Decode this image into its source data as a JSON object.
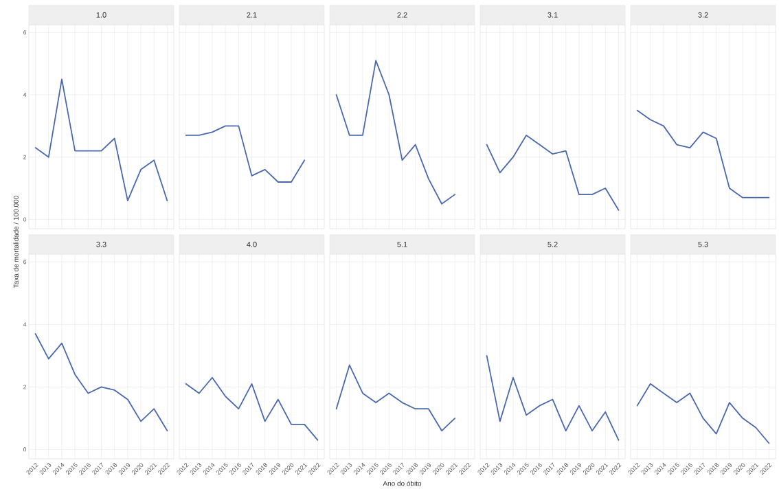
{
  "chart_data": [
    {
      "type": "line",
      "title": "1.0",
      "categories": [
        "2012",
        "2013",
        "2014",
        "2015",
        "2016",
        "2017",
        "2018",
        "2019",
        "2020",
        "2021",
        "2022"
      ],
      "values": [
        2.3,
        2.0,
        4.5,
        2.2,
        2.2,
        2.2,
        2.6,
        0.6,
        1.6,
        1.9,
        0.6
      ],
      "color": "#4a68ad",
      "ylim": [
        -0.3,
        6.25
      ],
      "yticks": [
        0,
        2,
        4,
        6
      ],
      "grid": true,
      "tick_labels": "y"
    },
    {
      "type": "line",
      "title": "2.1",
      "categories": [
        "2012",
        "2013",
        "2014",
        "2015",
        "2016",
        "2017",
        "2018",
        "2019",
        "2020",
        "2021",
        "2022"
      ],
      "values": [
        2.7,
        2.7,
        2.8,
        3.0,
        3.0,
        1.4,
        1.6,
        1.2,
        1.2,
        1.9,
        null
      ],
      "color": "#4a68ad",
      "ylim": [
        -0.3,
        6.25
      ],
      "yticks": [
        0,
        2,
        4,
        6
      ],
      "grid": true,
      "tick_labels": false
    },
    {
      "type": "line",
      "title": "2.2",
      "categories": [
        "2012",
        "2013",
        "2014",
        "2015",
        "2016",
        "2017",
        "2018",
        "2019",
        "2020",
        "2021",
        "2022"
      ],
      "values": [
        4.0,
        2.7,
        2.7,
        5.1,
        4.0,
        1.9,
        2.4,
        1.3,
        0.5,
        0.8,
        null
      ],
      "color": "#4a68ad",
      "ylim": [
        -0.3,
        6.25
      ],
      "yticks": [
        0,
        2,
        4,
        6
      ],
      "grid": true,
      "tick_labels": false
    },
    {
      "type": "line",
      "title": "3.1",
      "categories": [
        "2012",
        "2013",
        "2014",
        "2015",
        "2016",
        "2017",
        "2018",
        "2019",
        "2020",
        "2021",
        "2022"
      ],
      "values": [
        2.4,
        1.5,
        2.0,
        2.7,
        2.4,
        2.1,
        2.2,
        0.8,
        0.8,
        1.0,
        0.3
      ],
      "color": "#4a68ad",
      "ylim": [
        -0.3,
        6.25
      ],
      "yticks": [
        0,
        2,
        4,
        6
      ],
      "grid": true,
      "tick_labels": false
    },
    {
      "type": "line",
      "title": "3.2",
      "categories": [
        "2012",
        "2013",
        "2014",
        "2015",
        "2016",
        "2017",
        "2018",
        "2019",
        "2020",
        "2021",
        "2022"
      ],
      "values": [
        3.5,
        3.2,
        3.0,
        2.4,
        2.3,
        2.8,
        2.6,
        1.0,
        0.7,
        0.7,
        0.7
      ],
      "color": "#4a68ad",
      "ylim": [
        -0.3,
        6.25
      ],
      "yticks": [
        0,
        2,
        4,
        6
      ],
      "grid": true,
      "tick_labels": false
    },
    {
      "type": "line",
      "title": "3.3",
      "ylabel": "Taxa de mortalidade / 100.000",
      "categories": [
        "2012",
        "2013",
        "2014",
        "2015",
        "2016",
        "2017",
        "2018",
        "2019",
        "2020",
        "2021",
        "2022"
      ],
      "values": [
        3.7,
        2.9,
        3.4,
        2.4,
        1.8,
        2.0,
        1.9,
        1.6,
        0.9,
        1.3,
        0.6
      ],
      "color": "#4a68ad",
      "ylim": [
        -0.3,
        6.25
      ],
      "yticks": [
        0,
        2,
        4,
        6
      ],
      "grid": true
    },
    {
      "type": "line",
      "title": "4.0",
      "categories": [
        "2012",
        "2013",
        "2014",
        "2015",
        "2016",
        "2017",
        "2018",
        "2019",
        "2020",
        "2021",
        "2022"
      ],
      "values": [
        2.1,
        1.8,
        2.3,
        1.7,
        1.3,
        2.1,
        0.9,
        1.6,
        0.8,
        0.8,
        0.3
      ],
      "color": "#4a68ad",
      "ylim": [
        -0.3,
        6.25
      ],
      "yticks": [
        0,
        2,
        4,
        6
      ],
      "grid": true,
      "tick_labels": "x"
    },
    {
      "type": "line",
      "title": "5.1",
      "xlabel": "Ano do óbito",
      "categories": [
        "2012",
        "2013",
        "2014",
        "2015",
        "2016",
        "2017",
        "2018",
        "2019",
        "2020",
        "2021",
        "2022"
      ],
      "values": [
        1.3,
        2.7,
        1.8,
        1.5,
        1.8,
        1.5,
        1.3,
        1.3,
        0.6,
        1.0,
        null
      ],
      "color": "#4a68ad",
      "ylim": [
        -0.3,
        6.25
      ],
      "yticks": [
        0,
        2,
        4,
        6
      ],
      "grid": true,
      "tick_labels": "x"
    },
    {
      "type": "line",
      "title": "5.2",
      "categories": [
        "2012",
        "2013",
        "2014",
        "2015",
        "2016",
        "2017",
        "2018",
        "2019",
        "2020",
        "2021",
        "2022"
      ],
      "values": [
        3.0,
        0.9,
        2.3,
        1.1,
        1.4,
        1.6,
        0.6,
        1.4,
        0.6,
        1.2,
        0.3
      ],
      "color": "#4a68ad",
      "ylim": [
        -0.3,
        6.25
      ],
      "yticks": [
        0,
        2,
        4,
        6
      ],
      "grid": true,
      "tick_labels": "x"
    },
    {
      "type": "line",
      "title": "5.3",
      "categories": [
        "2012",
        "2013",
        "2014",
        "2015",
        "2016",
        "2017",
        "2018",
        "2019",
        "2020",
        "2021",
        "2022"
      ],
      "values": [
        1.4,
        2.1,
        1.8,
        1.5,
        1.8,
        1.0,
        0.5,
        1.5,
        1.0,
        0.7,
        0.2
      ],
      "color": "#4a68ad",
      "ylim": [
        -0.3,
        6.25
      ],
      "yticks": [
        0,
        2,
        4,
        6
      ],
      "grid": true,
      "tick_labels": "x"
    }
  ]
}
